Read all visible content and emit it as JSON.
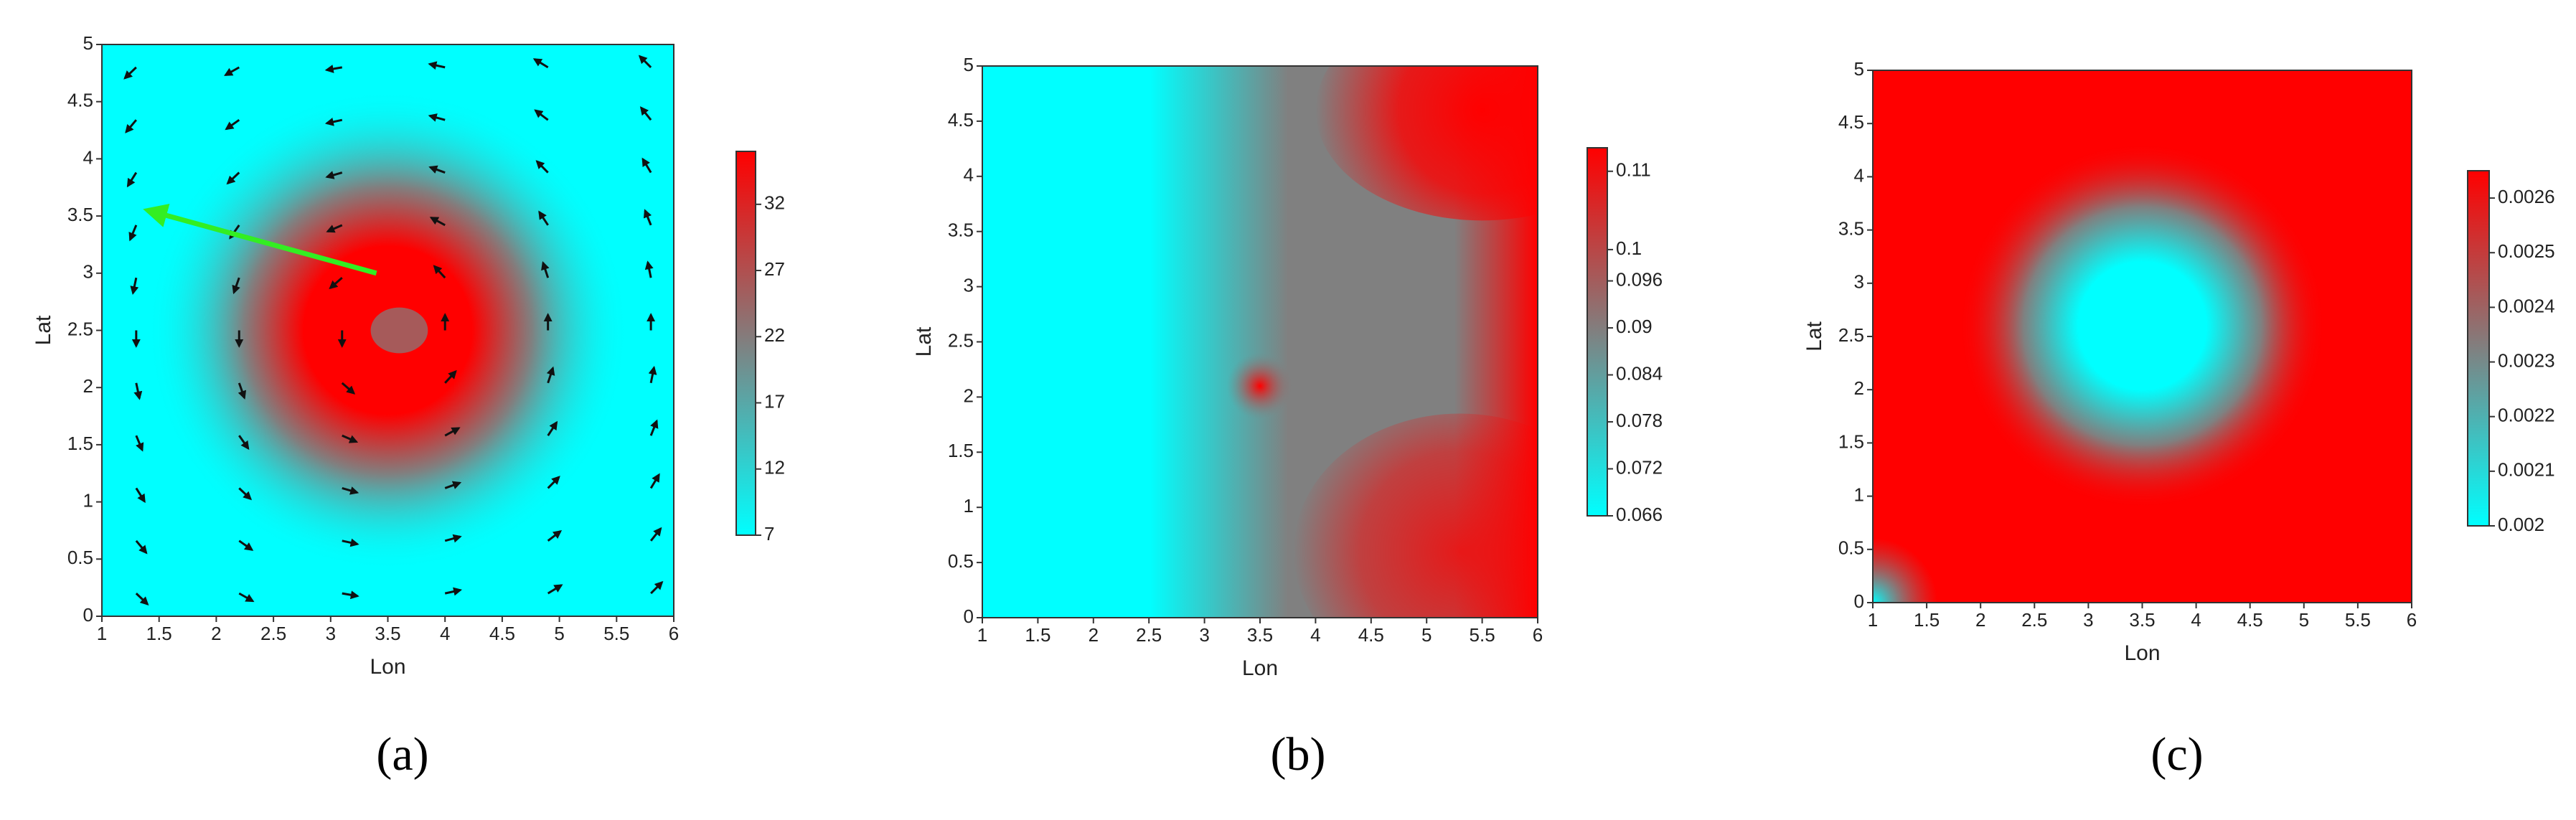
{
  "chart_data": [
    {
      "type": "contour",
      "label": "(a)",
      "xlabel": "Lon",
      "ylabel": "Lat",
      "xlim": [
        1,
        6
      ],
      "ylim": [
        0,
        5
      ],
      "xticks": [
        1,
        1.5,
        2,
        2.5,
        3,
        3.5,
        4,
        4.5,
        5,
        5.5,
        6
      ],
      "yticks": [
        0,
        0.5,
        1,
        1.5,
        2,
        2.5,
        3,
        3.5,
        4,
        4.5,
        5
      ],
      "colormap": [
        "#00ffff",
        "#808080",
        "#ff0000"
      ],
      "clim": [
        7,
        36
      ],
      "cticks": [
        7,
        12,
        17,
        22,
        27,
        32
      ]
    },
    {
      "type": "contour",
      "label": "(b)",
      "xlabel": "Lon",
      "ylabel": "Lat",
      "xlim": [
        1,
        6
      ],
      "ylim": [
        0,
        5
      ],
      "xticks": [
        1,
        1.5,
        2,
        2.5,
        3,
        3.5,
        4,
        4.5,
        5,
        5.5,
        6
      ],
      "yticks": [
        0,
        0.5,
        1,
        1.5,
        2,
        2.5,
        3,
        3.5,
        4,
        4.5,
        5
      ],
      "colormap": [
        "#00ffff",
        "#808080",
        "#ff0000"
      ],
      "clim": [
        0.066,
        0.113
      ],
      "cticks": [
        0.066,
        0.072,
        0.078,
        0.084,
        0.09,
        0.096,
        0.1,
        0.11
      ]
    },
    {
      "type": "contour",
      "label": "(c)",
      "xlabel": "Lon",
      "ylabel": "Lat",
      "xlim": [
        1,
        6
      ],
      "ylim": [
        0,
        5
      ],
      "xticks": [
        1,
        1.5,
        2,
        2.5,
        3,
        3.5,
        4,
        4.5,
        5,
        5.5,
        6
      ],
      "yticks": [
        0,
        0.5,
        1,
        1.5,
        2,
        2.5,
        3,
        3.5,
        4,
        4.5,
        5
      ],
      "colormap": [
        "#00ffff",
        "#808080",
        "#ff0000"
      ],
      "clim": [
        0.002,
        0.00265
      ],
      "cticks": [
        0.002,
        0.0021,
        0.0022,
        0.0023,
        0.0024,
        0.0025,
        0.0026
      ]
    }
  ]
}
